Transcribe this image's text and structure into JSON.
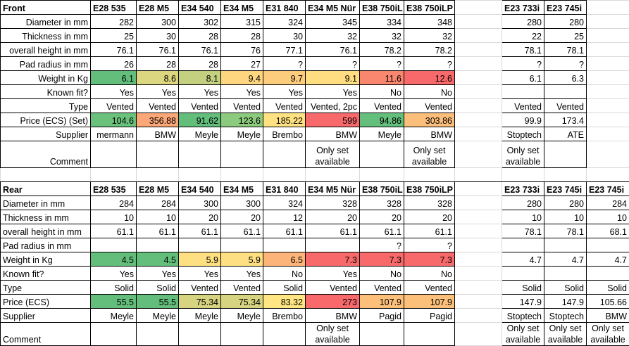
{
  "front": {
    "title": "Front",
    "columns": [
      "E28 535",
      "E28 M5",
      "E34 540",
      "E34 M5",
      "E31 840",
      "E34 M5 Nür",
      "E38 750iL",
      "E38 750iLP",
      "E23 733i",
      "E23 745i"
    ],
    "rows": [
      {
        "label": "Diameter in mm",
        "cells": [
          282,
          300,
          302,
          315,
          324,
          345,
          334,
          348,
          280,
          280
        ]
      },
      {
        "label": "Thickness in mm",
        "cells": [
          25,
          30,
          28,
          28,
          30,
          32,
          32,
          32,
          22,
          25
        ]
      },
      {
        "label": "overall height in mm",
        "cells": [
          76.1,
          76.1,
          76.1,
          76,
          77.1,
          76.1,
          78.2,
          78.2,
          78.1,
          78.1
        ]
      },
      {
        "label": "Pad radius in mm",
        "cells": [
          26,
          28,
          28,
          27,
          "?",
          "?",
          "?",
          "?",
          "?",
          "?"
        ]
      },
      {
        "label": "Weight in Kg",
        "cells": [
          6.1,
          8.6,
          8.1,
          9.4,
          9.7,
          9.1,
          11.6,
          12.6,
          6.1,
          6.3
        ],
        "colors": [
          "#63be7b",
          "#dcd680",
          "#c4cf7f",
          "#fed680",
          "#fdcd7e",
          "#fede81",
          "#f9876f",
          "#f8696b"
        ]
      },
      {
        "label": "Known fit?",
        "cells": [
          "Yes",
          "Yes",
          "Yes",
          "Yes",
          "Yes",
          "Yes",
          "No",
          "No",
          null,
          null
        ]
      },
      {
        "label": "Type",
        "cells": [
          "Vented",
          "Vented",
          "Vented",
          "Vented",
          "Vented",
          "Vented, 2pc",
          "Vented",
          "Vented",
          "Vented",
          "Vented"
        ]
      },
      {
        "label": "Price (ECS) (Set)",
        "cells": [
          104.6,
          356.88,
          91.62,
          123.6,
          185.22,
          599,
          94.86,
          303.86,
          99.9,
          173.4
        ],
        "colors": [
          "#6ac17c",
          "#fba777",
          "#63be7b",
          "#8cca7e",
          "#fee282",
          "#f8696b",
          "#65bf7c",
          "#fcbf7b"
        ]
      },
      {
        "label": "Supplier",
        "cells": [
          "mermann",
          "BMW",
          "Meyle",
          "Meyle",
          "Brembo",
          "BMW",
          "Meyle",
          "BMW",
          "Stoptech",
          "ATE"
        ]
      },
      {
        "label": "Comment",
        "cells": [
          null,
          null,
          null,
          null,
          null,
          "Only set available",
          null,
          "Only set available",
          "Only set available",
          null
        ]
      }
    ]
  },
  "rear": {
    "title": "Rear",
    "columns": [
      "E28 535",
      "E28 M5",
      "E34 540",
      "E34 M5",
      "E31 840",
      "E34 M5 Nür",
      "E38 750iL",
      "E38 750iLP",
      "E23 733i",
      "E23 745i",
      "E23 745i"
    ],
    "rows": [
      {
        "label": "Diameter in mm",
        "cells": [
          284,
          284,
          300,
          300,
          324,
          328,
          328,
          328,
          280,
          280,
          284
        ]
      },
      {
        "label": "Thickness in mm",
        "cells": [
          10,
          10,
          20,
          20,
          12,
          20,
          20,
          20,
          10,
          10,
          10
        ]
      },
      {
        "label": "overall height in mm",
        "cells": [
          61.1,
          61.1,
          61.1,
          61.1,
          61.1,
          61.1,
          61.1,
          61.1,
          78.1,
          78.1,
          68.1
        ]
      },
      {
        "label": "Pad radius in mm",
        "cells": [
          null,
          null,
          null,
          null,
          null,
          null,
          "?",
          "?",
          null,
          null,
          null
        ]
      },
      {
        "label": "Weight in Kg",
        "cells": [
          4.5,
          4.5,
          5.9,
          5.9,
          6.5,
          7.3,
          7.3,
          7.3,
          4.7,
          4.7,
          4.7
        ],
        "colors": [
          "#63be7b",
          "#63be7b",
          "#fedf81",
          "#fedf81",
          "#fcb479",
          "#f8696b",
          "#f8696b",
          "#f8696b"
        ]
      },
      {
        "label": "Known fit?",
        "cells": [
          "Yes",
          "Yes",
          "Yes",
          "Yes",
          "No",
          "Yes",
          "No",
          "No",
          null,
          null,
          null
        ]
      },
      {
        "label": "Type",
        "cells": [
          "Solid",
          "Solid",
          "Vented",
          "Vented",
          "Solid",
          "Vented",
          "Vented",
          "Vented",
          "Solid",
          "Solid",
          "Solid"
        ]
      },
      {
        "label": "Price (ECS)",
        "cells": [
          55.5,
          55.5,
          75.34,
          75.34,
          83.32,
          273,
          107.9,
          107.9,
          147.9,
          147.9,
          105.66
        ],
        "colors": [
          "#63be7b",
          "#63be7b",
          "#d6d480",
          "#d6d480",
          "#ffe683",
          "#f8696b",
          "#fcc07b",
          "#fcc07b"
        ]
      },
      {
        "label": "Supplier",
        "cells": [
          "Meyle",
          "Meyle",
          "Meyle",
          "Meyle",
          "Brembo",
          "BMW",
          "Pagid",
          "Pagid",
          "Stoptech",
          "Stoptech",
          "BMW"
        ]
      },
      {
        "label": "Comment",
        "cells": [
          null,
          null,
          null,
          null,
          null,
          "Only set available",
          null,
          null,
          "Only set available",
          "Only set available",
          "Only set available"
        ]
      }
    ]
  }
}
